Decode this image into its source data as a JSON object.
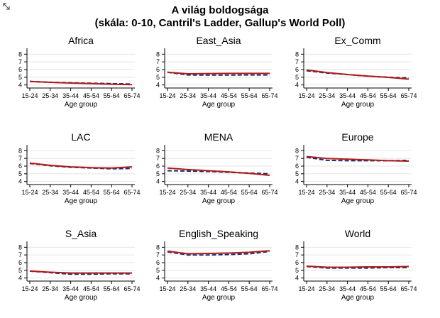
{
  "header": {
    "title_line1": "A világ boldogsága",
    "title_line2": "(skála: 0-10, Cantril's Ladder, Gallup's World Poll)"
  },
  "colors": {
    "solid_series": "#b01c1c",
    "dashed_series": "#1a2a6c",
    "grid": "#e4e4e4"
  },
  "chart_data": [
    {
      "type": "line",
      "title": "Africa",
      "xlabel": "Age group",
      "categories": [
        "15-24",
        "25-34",
        "35-44",
        "45-54",
        "55-64",
        "65-74"
      ],
      "yticks": [
        4,
        5,
        6,
        7,
        8
      ],
      "ylim": [
        3.6,
        8.4
      ],
      "series": [
        {
          "style": "dashed",
          "values": [
            4.45,
            4.35,
            4.28,
            4.22,
            4.17,
            4.12
          ]
        },
        {
          "style": "solid",
          "values": [
            4.45,
            4.34,
            4.25,
            4.17,
            4.1,
            4.03
          ]
        }
      ]
    },
    {
      "type": "line",
      "title": "East_Asia",
      "xlabel": "Age group",
      "categories": [
        "15-24",
        "25-34",
        "35-44",
        "45-54",
        "55-64",
        "65-74"
      ],
      "yticks": [
        4,
        5,
        6,
        7,
        8
      ],
      "ylim": [
        3.6,
        8.4
      ],
      "series": [
        {
          "style": "dashed",
          "values": [
            5.65,
            5.3,
            5.28,
            5.28,
            5.3,
            5.3
          ]
        },
        {
          "style": "solid",
          "values": [
            5.65,
            5.45,
            5.48,
            5.5,
            5.5,
            5.5
          ]
        }
      ]
    },
    {
      "type": "line",
      "title": "Ex_Comm",
      "xlabel": "Age group",
      "categories": [
        "15-24",
        "25-34",
        "35-44",
        "45-54",
        "55-64",
        "65-74"
      ],
      "yticks": [
        4,
        5,
        6,
        7,
        8
      ],
      "ylim": [
        3.6,
        8.4
      ],
      "series": [
        {
          "style": "dashed",
          "values": [
            5.85,
            5.55,
            5.35,
            5.15,
            5.0,
            4.9
          ]
        },
        {
          "style": "solid",
          "values": [
            5.95,
            5.6,
            5.35,
            5.15,
            4.98,
            4.75
          ]
        }
      ]
    },
    {
      "type": "line",
      "title": "LAC",
      "xlabel": "Age group",
      "categories": [
        "15-24",
        "25-34",
        "35-44",
        "45-54",
        "55-64",
        "65-74"
      ],
      "yticks": [
        4,
        5,
        6,
        7,
        8
      ],
      "ylim": [
        3.6,
        8.4
      ],
      "series": [
        {
          "style": "dashed",
          "values": [
            6.35,
            6.05,
            5.85,
            5.75,
            5.65,
            5.7
          ]
        },
        {
          "style": "solid",
          "values": [
            6.4,
            6.1,
            5.9,
            5.8,
            5.75,
            5.9
          ]
        }
      ]
    },
    {
      "type": "line",
      "title": "MENA",
      "xlabel": "Age group",
      "categories": [
        "15-24",
        "25-34",
        "35-44",
        "45-54",
        "55-64",
        "65-74"
      ],
      "yticks": [
        4,
        5,
        6,
        7,
        8
      ],
      "ylim": [
        3.6,
        8.4
      ],
      "series": [
        {
          "style": "dashed",
          "values": [
            5.4,
            5.35,
            5.3,
            5.2,
            5.1,
            5.0
          ]
        },
        {
          "style": "solid",
          "values": [
            5.75,
            5.55,
            5.4,
            5.25,
            5.05,
            4.8
          ]
        }
      ]
    },
    {
      "type": "line",
      "title": "Europe",
      "xlabel": "Age group",
      "categories": [
        "15-24",
        "25-34",
        "35-44",
        "45-54",
        "55-64",
        "65-74"
      ],
      "yticks": [
        4,
        5,
        6,
        7,
        8
      ],
      "ylim": [
        3.6,
        8.4
      ],
      "series": [
        {
          "style": "dashed",
          "values": [
            7.15,
            6.75,
            6.7,
            6.7,
            6.7,
            6.75
          ]
        },
        {
          "style": "solid",
          "values": [
            7.25,
            7.0,
            6.9,
            6.8,
            6.7,
            6.65
          ]
        }
      ]
    },
    {
      "type": "line",
      "title": "S_Asia",
      "xlabel": "Age group",
      "categories": [
        "15-24",
        "25-34",
        "35-44",
        "45-54",
        "55-64",
        "65-74"
      ],
      "yticks": [
        4,
        5,
        6,
        7,
        8
      ],
      "ylim": [
        3.6,
        8.4
      ],
      "series": [
        {
          "style": "dashed",
          "values": [
            4.9,
            4.7,
            4.5,
            4.5,
            4.55,
            4.55
          ]
        },
        {
          "style": "solid",
          "values": [
            4.9,
            4.75,
            4.65,
            4.65,
            4.65,
            4.65
          ]
        }
      ]
    },
    {
      "type": "line",
      "title": "English_Speaking",
      "xlabel": "Age group",
      "categories": [
        "15-24",
        "25-34",
        "35-44",
        "45-54",
        "55-64",
        "65-74"
      ],
      "yticks": [
        4,
        5,
        6,
        7,
        8
      ],
      "ylim": [
        3.6,
        8.4
      ],
      "series": [
        {
          "style": "dashed",
          "values": [
            7.4,
            7.0,
            7.0,
            7.05,
            7.15,
            7.45
          ]
        },
        {
          "style": "solid",
          "values": [
            7.5,
            7.15,
            7.2,
            7.25,
            7.35,
            7.55
          ]
        }
      ]
    },
    {
      "type": "line",
      "title": "World",
      "xlabel": "Age group",
      "categories": [
        "15-24",
        "25-34",
        "35-44",
        "45-54",
        "55-64",
        "65-74"
      ],
      "yticks": [
        4,
        5,
        6,
        7,
        8
      ],
      "ylim": [
        3.6,
        8.4
      ],
      "series": [
        {
          "style": "dashed",
          "values": [
            5.5,
            5.3,
            5.3,
            5.3,
            5.35,
            5.35
          ]
        },
        {
          "style": "solid",
          "values": [
            5.55,
            5.4,
            5.4,
            5.45,
            5.45,
            5.5
          ]
        }
      ]
    }
  ]
}
